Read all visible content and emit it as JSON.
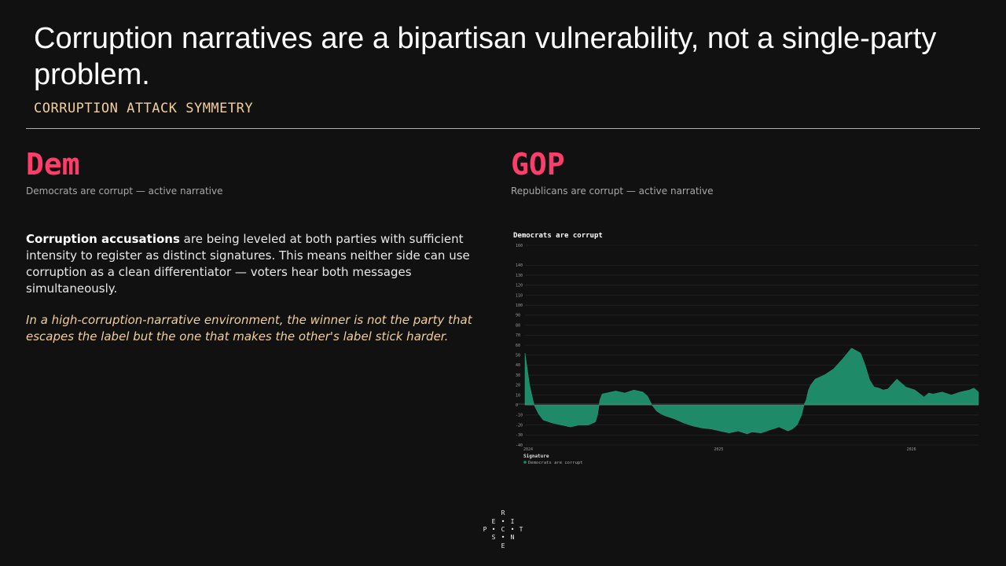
{
  "slide": {
    "title": "Corruption narratives are a bipartisan vulnerability, not a single-party problem.",
    "subtitle": "CORRUPTION ATTACK SYMMETRY"
  },
  "left_panel": {
    "label": "Dem",
    "description": "Democrats are corrupt — active narrative",
    "body_bold": "Corruption accusations",
    "body_rest": " are being leveled at both parties with sufficient intensity to register as distinct signatures. This means neither side can use corruption as a clean differentiator — voters hear both messages simultaneously.",
    "note": "In a high-corruption-narrative environment, the winner is not the party that escapes the label but the one that makes the other's label stick harder."
  },
  "right_panel": {
    "label": "GOP",
    "description": "Republicans are corrupt — active narrative"
  },
  "chart_data": {
    "type": "area",
    "title": "Democrats are corrupt",
    "xlabel": "",
    "ylabel": "",
    "x_ticks": [
      "2024",
      "2025",
      "2026"
    ],
    "ylim": [
      -40,
      160
    ],
    "y_ticks": [
      -40,
      -30,
      -20,
      -10,
      0,
      10,
      20,
      30,
      40,
      50,
      60,
      70,
      80,
      90,
      100,
      110,
      120,
      130,
      140,
      160
    ],
    "grid": true,
    "legend_title": "Signature",
    "legend_position": "bottom-left",
    "color": "#1e8a68",
    "series": [
      {
        "name": "Democrats are corrupt",
        "x": [
          0,
          0.01,
          0.02,
          0.03,
          0.04,
          0.06,
          0.08,
          0.1,
          0.12,
          0.14,
          0.155,
          0.16,
          0.165,
          0.17,
          0.18,
          0.2,
          0.22,
          0.24,
          0.26,
          0.27,
          0.28,
          0.29,
          0.3,
          0.31,
          0.33,
          0.35,
          0.37,
          0.39,
          0.41,
          0.43,
          0.45,
          0.47,
          0.49,
          0.5,
          0.52,
          0.54,
          0.56,
          0.58,
          0.59,
          0.6,
          0.61,
          0.615,
          0.62,
          0.625,
          0.63,
          0.64,
          0.66,
          0.68,
          0.7,
          0.72,
          0.74,
          0.75,
          0.76,
          0.77,
          0.78,
          0.79,
          0.8,
          0.82,
          0.84,
          0.86,
          0.88,
          0.89,
          0.9,
          0.92,
          0.94,
          0.96,
          0.98,
          0.99,
          1.0
        ],
        "values": [
          52,
          20,
          0,
          -9,
          -15,
          -18,
          -20,
          -22,
          -20,
          -20,
          -17,
          -10,
          5,
          11,
          12,
          14,
          12,
          15,
          13,
          9,
          0,
          -6,
          -9,
          -11,
          -14,
          -18,
          -21,
          -23,
          -24,
          -26,
          -28,
          -26,
          -29,
          -27,
          -28,
          -25,
          -22,
          -26,
          -24,
          -20,
          -10,
          0,
          5,
          15,
          20,
          26,
          30,
          36,
          46,
          57,
          52,
          40,
          25,
          18,
          17,
          15,
          16,
          26,
          18,
          15,
          8,
          12,
          11,
          13,
          10,
          13,
          15,
          17,
          13
        ]
      }
    ]
  },
  "logo": {
    "letters": [
      "R",
      "E",
      "I",
      "P",
      "C",
      "T",
      "S",
      "N",
      "E"
    ]
  }
}
